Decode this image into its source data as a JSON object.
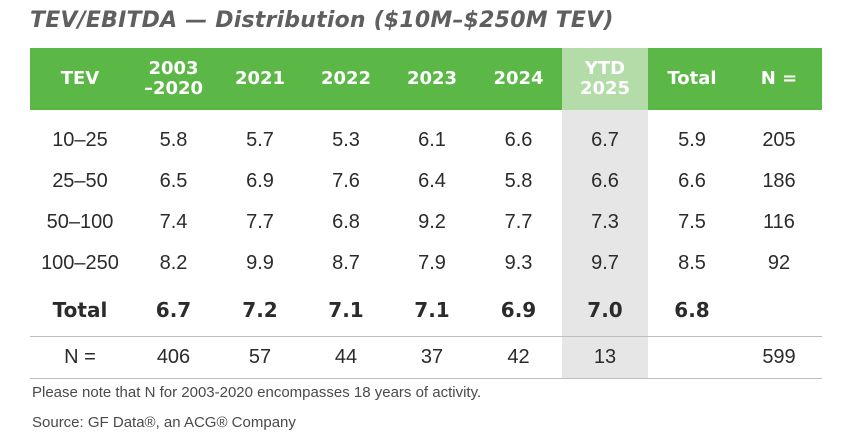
{
  "title": "TEV/EBITDA — Distribution ($10M–$250M TEV)",
  "columns": {
    "tev": "TEV",
    "p1": "2003",
    "p1b": "–2020",
    "y2021": "2021",
    "y2022": "2022",
    "y2023": "2023",
    "y2024": "2024",
    "ytd1": "YTD",
    "ytd2": "2025",
    "total": "Total",
    "n": "N ="
  },
  "rows": [
    {
      "tev": "10–25",
      "p1": "5.8",
      "y2021": "5.7",
      "y2022": "5.3",
      "y2023": "6.1",
      "y2024": "6.6",
      "ytd": "6.7",
      "total": "5.9",
      "n": "205"
    },
    {
      "tev": "25–50",
      "p1": "6.5",
      "y2021": "6.9",
      "y2022": "7.6",
      "y2023": "6.4",
      "y2024": "5.8",
      "ytd": "6.6",
      "total": "6.6",
      "n": "186"
    },
    {
      "tev": "50–100",
      "p1": "7.4",
      "y2021": "7.7",
      "y2022": "6.8",
      "y2023": "9.2",
      "y2024": "7.7",
      "ytd": "7.3",
      "total": "7.5",
      "n": "116"
    },
    {
      "tev": "100–250",
      "p1": "8.2",
      "y2021": "9.9",
      "y2022": "8.7",
      "y2023": "7.9",
      "y2024": "9.3",
      "ytd": "9.7",
      "total": "8.5",
      "n": "92"
    }
  ],
  "total_row": {
    "label": "Total",
    "p1": "6.7",
    "y2021": "7.2",
    "y2022": "7.1",
    "y2023": "7.1",
    "y2024": "6.9",
    "ytd": "7.0",
    "total": "6.8"
  },
  "n_row": {
    "label": "N =",
    "p1": "406",
    "y2021": "57",
    "y2022": "44",
    "y2023": "37",
    "y2024": "42",
    "ytd": "13",
    "n": "599"
  },
  "footnote": "Please note that N for 2003-2020 encompasses 18 years of activity.",
  "source": "Source: GF Data®, an ACG® Company",
  "colors": {
    "header_green": "#5cb846",
    "ytd_header": "#b3dca8",
    "ytd_column": "#e6e6e6"
  }
}
